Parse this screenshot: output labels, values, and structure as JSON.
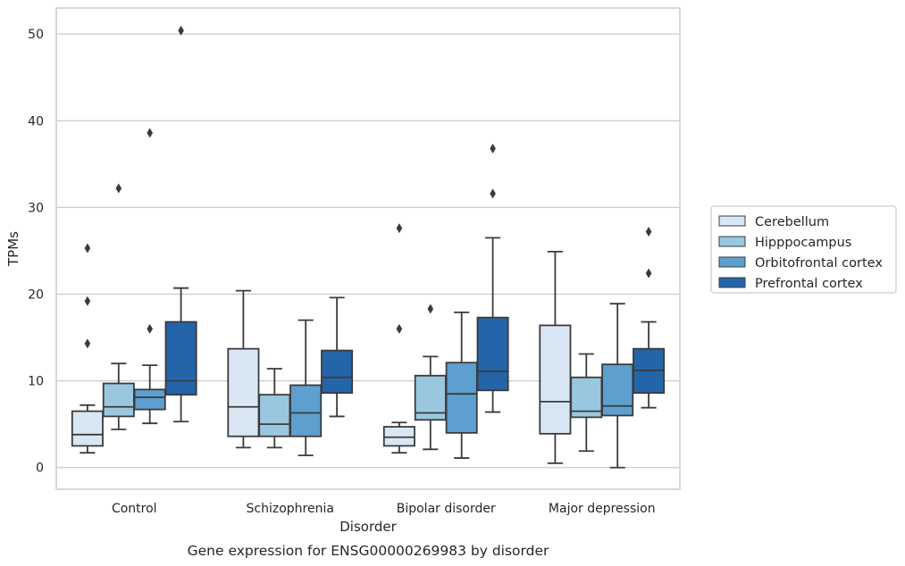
{
  "chart_data": {
    "type": "box",
    "caption": "Gene expression for ENSG00000269983 by disorder",
    "xlabel": "Disorder",
    "ylabel": "TPMs",
    "ylim": [
      -2.5,
      53
    ],
    "yticks": [
      0,
      10,
      20,
      30,
      40,
      50
    ],
    "grid": "horizontal",
    "legend_position": "right",
    "categories": [
      "Control",
      "Schizophrenia",
      "Bipolar disorder",
      "Major depression"
    ],
    "series": [
      {
        "name": "Cerebellum",
        "color": "#d9e7f5",
        "boxes": [
          {
            "whislo": 1.7,
            "q1": 2.5,
            "med": 3.8,
            "q3": 6.5,
            "whishi": 7.2,
            "fliers": [
              14.3,
              19.2,
              25.3
            ]
          },
          {
            "whislo": 2.3,
            "q1": 3.6,
            "med": 7.0,
            "q3": 13.7,
            "whishi": 20.4,
            "fliers": []
          },
          {
            "whislo": 1.7,
            "q1": 2.5,
            "med": 3.5,
            "q3": 4.7,
            "whishi": 5.2,
            "fliers": [
              16.0,
              27.6
            ]
          },
          {
            "whislo": 0.5,
            "q1": 3.9,
            "med": 7.6,
            "q3": 16.4,
            "whishi": 24.9,
            "fliers": []
          }
        ]
      },
      {
        "name": "Hipppocampus",
        "color": "#9ac7e0",
        "boxes": [
          {
            "whislo": 4.4,
            "q1": 5.9,
            "med": 7.0,
            "q3": 9.7,
            "whishi": 12.0,
            "fliers": [
              32.2
            ]
          },
          {
            "whislo": 2.3,
            "q1": 3.6,
            "med": 5.0,
            "q3": 8.4,
            "whishi": 11.4,
            "fliers": []
          },
          {
            "whislo": 2.1,
            "q1": 5.5,
            "med": 6.3,
            "q3": 10.6,
            "whishi": 12.8,
            "fliers": [
              18.3
            ]
          },
          {
            "whislo": 1.9,
            "q1": 5.8,
            "med": 6.5,
            "q3": 10.4,
            "whishi": 13.1,
            "fliers": []
          }
        ]
      },
      {
        "name": "Orbitofrontal cortex",
        "color": "#5da0cf",
        "boxes": [
          {
            "whislo": 5.1,
            "q1": 6.7,
            "med": 8.1,
            "q3": 9.0,
            "whishi": 11.8,
            "fliers": [
              16.0,
              38.6
            ]
          },
          {
            "whislo": 1.4,
            "q1": 3.6,
            "med": 6.3,
            "q3": 9.5,
            "whishi": 17.0,
            "fliers": []
          },
          {
            "whislo": 1.1,
            "q1": 4.0,
            "med": 8.5,
            "q3": 12.1,
            "whishi": 17.9,
            "fliers": []
          },
          {
            "whislo": 0.0,
            "q1": 6.0,
            "med": 7.1,
            "q3": 11.9,
            "whishi": 18.9,
            "fliers": []
          }
        ]
      },
      {
        "name": "Prefrontal cortex",
        "color": "#2465a9",
        "boxes": [
          {
            "whislo": 5.3,
            "q1": 8.4,
            "med": 10.0,
            "q3": 16.8,
            "whishi": 20.7,
            "fliers": [
              50.4
            ]
          },
          {
            "whislo": 5.9,
            "q1": 8.6,
            "med": 10.4,
            "q3": 13.5,
            "whishi": 19.6,
            "fliers": []
          },
          {
            "whislo": 6.4,
            "q1": 8.9,
            "med": 11.1,
            "q3": 17.3,
            "whishi": 26.5,
            "fliers": [
              31.6,
              36.8
            ]
          },
          {
            "whislo": 6.9,
            "q1": 8.6,
            "med": 11.2,
            "q3": 13.7,
            "whishi": 16.8,
            "fliers": [
              22.4,
              27.2
            ]
          }
        ]
      }
    ]
  }
}
